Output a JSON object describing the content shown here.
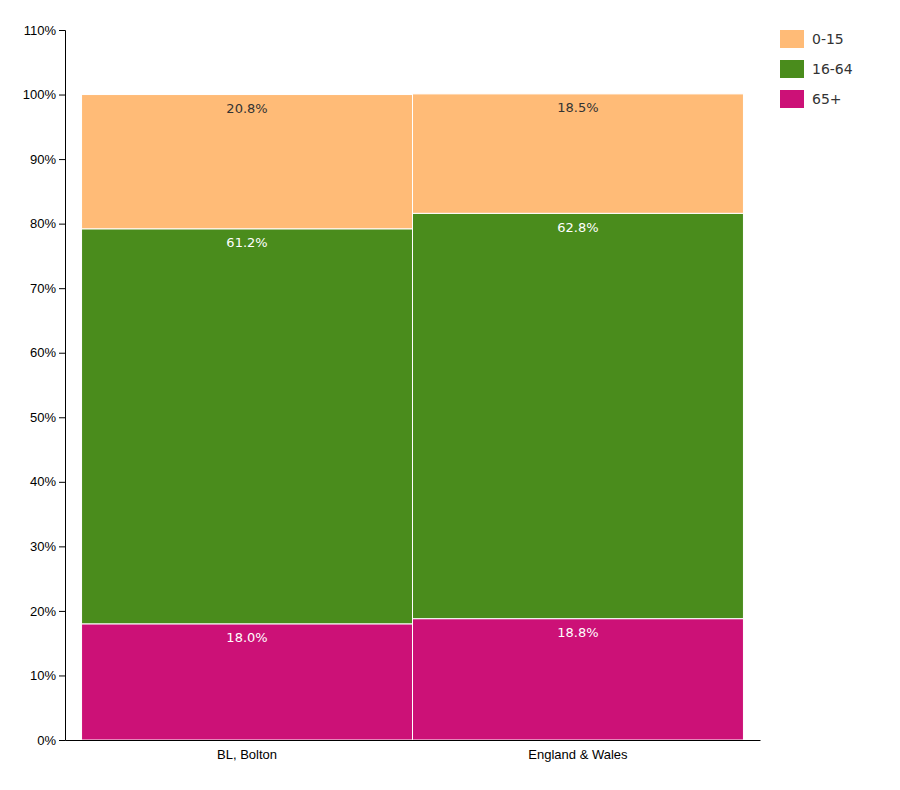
{
  "chart_data": {
    "type": "bar",
    "stacked": true,
    "categories": [
      "BL, Bolton",
      "England & Wales"
    ],
    "series": [
      {
        "name": "65+",
        "color": "#CC1177",
        "values": [
          18.0,
          18.8
        ],
        "value_labels": [
          "18.0%",
          "18.8%"
        ]
      },
      {
        "name": "16-64",
        "color": "#4A8C1C",
        "values": [
          61.2,
          62.8
        ],
        "value_labels": [
          "61.2%",
          "62.8%"
        ]
      },
      {
        "name": "0-15",
        "color": "#FFBB77",
        "values": [
          20.8,
          18.5
        ],
        "value_labels": [
          "20.8%",
          "18.5%"
        ]
      }
    ],
    "ylim": [
      0,
      110
    ],
    "yticks": [
      {
        "value": 0,
        "label": "0%"
      },
      {
        "value": 10,
        "label": "10%"
      },
      {
        "value": 20,
        "label": "20%"
      },
      {
        "value": 30,
        "label": "30%"
      },
      {
        "value": 40,
        "label": "40%"
      },
      {
        "value": 50,
        "label": "50%"
      },
      {
        "value": 60,
        "label": "60%"
      },
      {
        "value": 70,
        "label": "70%"
      },
      {
        "value": 80,
        "label": "80%"
      },
      {
        "value": 90,
        "label": "90%"
      },
      {
        "value": 100,
        "label": "100%"
      },
      {
        "value": 110,
        "label": "110%"
      }
    ],
    "grid": false,
    "legend": "right",
    "data_labels": true
  }
}
